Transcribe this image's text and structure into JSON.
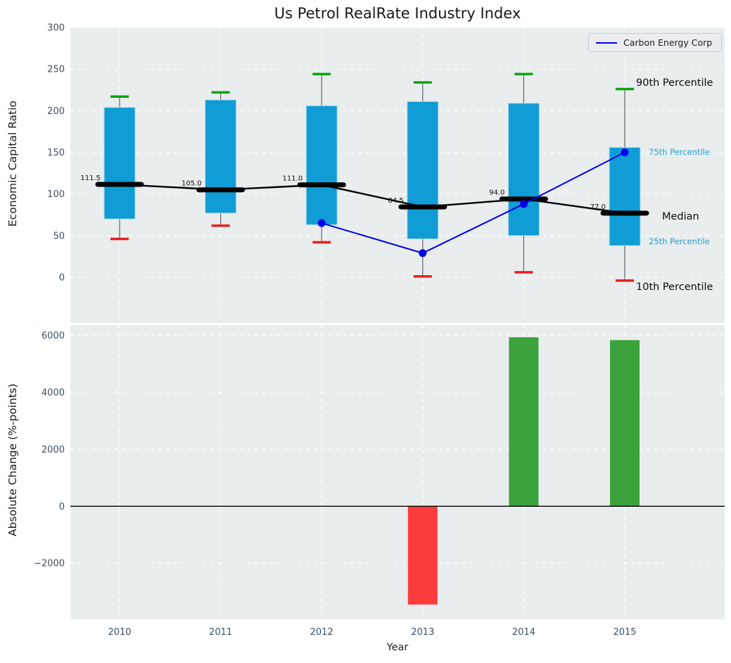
{
  "title": "Us Petrol RealRate Industry Index",
  "legend": {
    "label": "Carbon Energy Corp"
  },
  "annotations": {
    "p90": "90th Percentile",
    "p75": "75th Percentile",
    "median": "Median",
    "p25": "25th Percentile",
    "p10": "10th Percentile"
  },
  "colors": {
    "axes_background": "#e9edee",
    "grid": "#ffffff",
    "box_fill": "#109cd4",
    "box_edge": "#b7dcee",
    "whisker": "#5f6368",
    "cap_top": "#0ca30c",
    "cap_bottom": "#e82020",
    "median_line": "#000000",
    "company_line": "#0000ee",
    "bar_positive": "#3ca33c",
    "bar_negative": "#fc3d3d",
    "zero_line": "#000000",
    "tick_text": "#3d4f63",
    "annotation_percentile": "#1b9fd8",
    "annotation_dark": "#111111"
  },
  "chart_data": [
    {
      "type": "box",
      "title": "Us Petrol RealRate Industry Index",
      "ylabel": "Economic Capital Ratio",
      "categories": [
        "2010",
        "2011",
        "2012",
        "2013",
        "2014",
        "2015"
      ],
      "yticks": [
        300,
        250,
        200,
        150,
        100,
        50,
        0
      ],
      "ylim": [
        -55,
        300
      ],
      "grid": true,
      "legend_position": "upper right",
      "series": [
        {
          "name": "10th Percentile",
          "values": [
            46,
            62,
            42,
            1,
            6,
            -4
          ]
        },
        {
          "name": "25th Percentile",
          "values": [
            70,
            77,
            63,
            46,
            50,
            38
          ]
        },
        {
          "name": "Median",
          "values": [
            111.5,
            105,
            111,
            84.5,
            94,
            77
          ]
        },
        {
          "name": "75th Percentile",
          "values": [
            204,
            213,
            206,
            211,
            209,
            156
          ]
        },
        {
          "name": "90th Percentile",
          "values": [
            217,
            222,
            244,
            234,
            244,
            226
          ]
        },
        {
          "name": "Carbon Energy Corp",
          "x": [
            "2012",
            "2013",
            "2014",
            "2015"
          ],
          "values": [
            65,
            29,
            88,
            150
          ]
        }
      ],
      "median_labels": [
        "111.5",
        "105.0",
        "111.0",
        "84.5",
        "94.0",
        "77.0"
      ]
    },
    {
      "type": "bar",
      "ylabel": "Absolute Change (%-points)",
      "xlabel": "Year",
      "categories": [
        "2010",
        "2011",
        "2012",
        "2013",
        "2014",
        "2015"
      ],
      "values": [
        null,
        null,
        null,
        -3450,
        5930,
        5830
      ],
      "yticks": [
        6000,
        4000,
        2000,
        0,
        -2000
      ],
      "ytick_labels": [
        "6000",
        "4000",
        "2000",
        "0",
        "−2000"
      ],
      "ylim": [
        -3970,
        6355
      ],
      "grid": true
    }
  ]
}
